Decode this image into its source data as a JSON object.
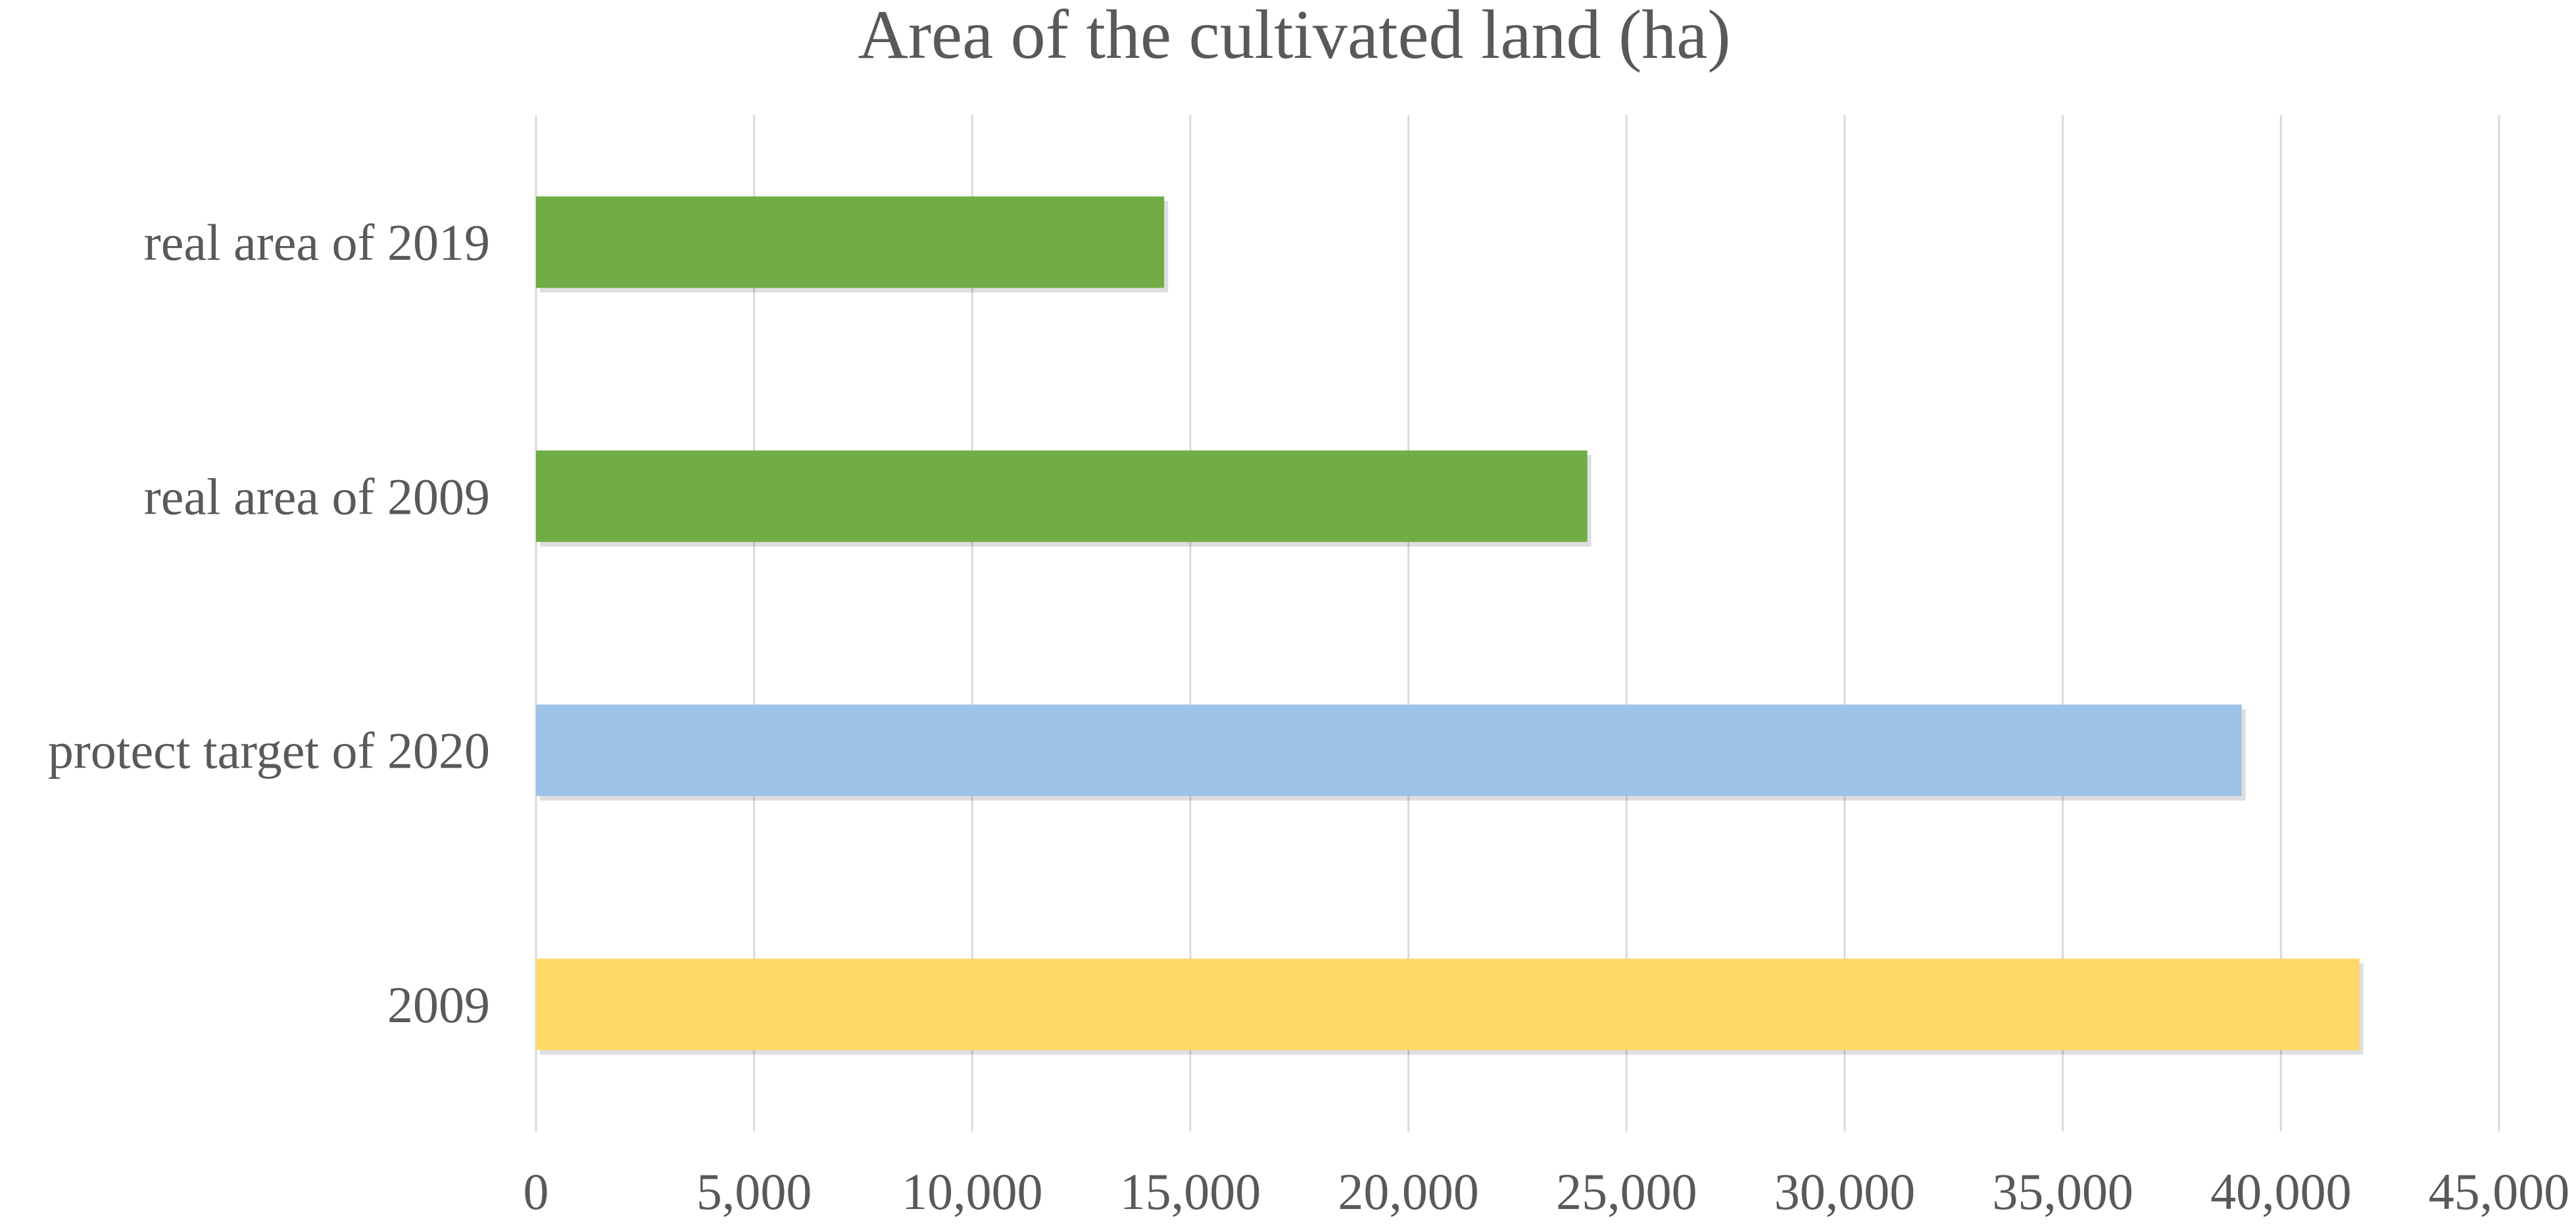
{
  "chart_data": {
    "type": "bar",
    "orientation": "horizontal",
    "title": "Area of the cultivated land (ha)",
    "xlabel": "",
    "ylabel": "",
    "categories": [
      "real area of 2019",
      "real area of 2009",
      "protect target of 2020",
      "2009"
    ],
    "values": [
      14400,
      24100,
      39100,
      41800
    ],
    "bar_colors": [
      "#70ad47",
      "#70ad47",
      "#9dc3e6",
      "#ffd966"
    ],
    "xlim": [
      0,
      45000
    ],
    "x_ticks": [
      "0",
      "5,000",
      "10,000",
      "15,000",
      "20,000",
      "25,000",
      "30,000",
      "35,000",
      "40,000",
      "45,000"
    ],
    "grid": true,
    "legend": "none"
  }
}
